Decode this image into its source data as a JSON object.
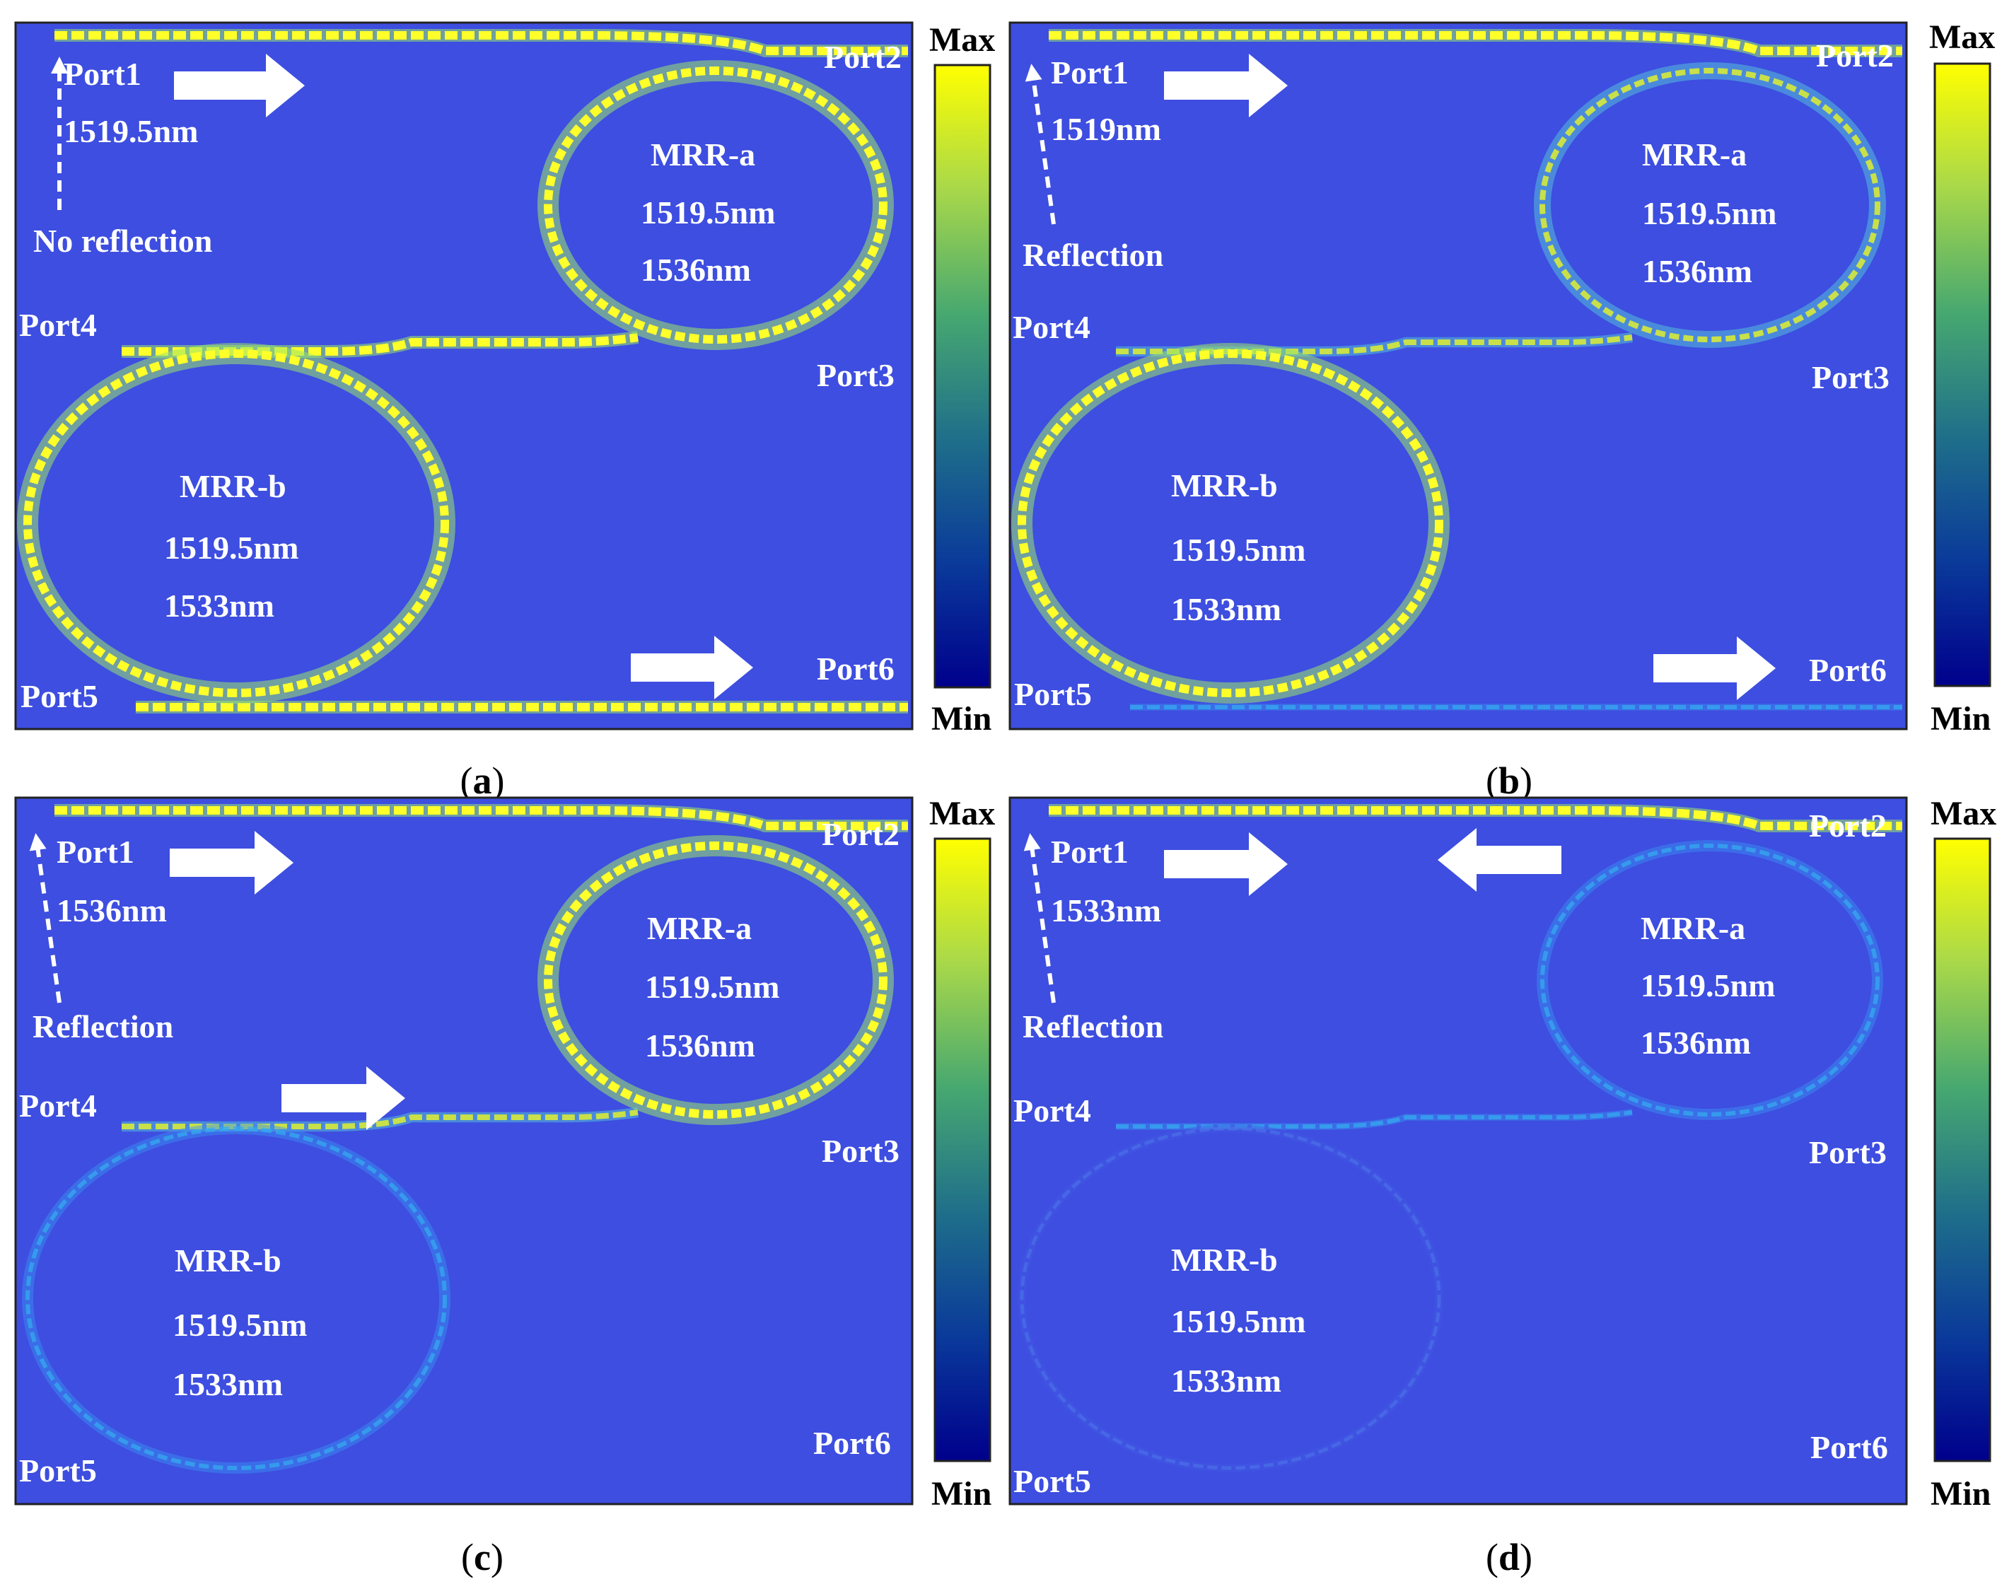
{
  "colorbar": {
    "max_label": "Max",
    "min_label": "Min",
    "colors": [
      "#00008c",
      "#0a3a9a",
      "#1f6f8a",
      "#47a870",
      "#a8d84a",
      "#ffff00"
    ]
  },
  "colors": {
    "background": "#3d4ee0",
    "ring_strong": "#ffff2a",
    "ring_weak": "#35a8f0",
    "arrow": "#ffffff"
  },
  "panels": [
    {
      "caption": "a",
      "port1": "Port1",
      "port2": "Port2",
      "port3": "Port3",
      "port4": "Port4",
      "port5": "Port5",
      "port6": "Port6",
      "port1_wavelength": "1519.5nm",
      "reflection_note": "No reflection",
      "mrr_a": {
        "name": "MRR-a",
        "wl1": "1519.5nm",
        "wl2": "1536nm"
      },
      "mrr_b": {
        "name": "MRR-b",
        "wl1": "1519.5nm",
        "wl2": "1533nm"
      },
      "ring_a_intensity": "strong",
      "ring_b_intensity": "strong",
      "bus_top": "strong",
      "bus_mid": "strong",
      "bus_bottom": "strong"
    },
    {
      "caption": "b",
      "port1": "Port1",
      "port2": "Port2",
      "port3": "Port3",
      "port4": "Port4",
      "port5": "Port5",
      "port6": "Port6",
      "port1_wavelength": "1519nm",
      "reflection_note": "Reflection",
      "mrr_a": {
        "name": "MRR-a",
        "wl1": "1519.5nm",
        "wl2": "1536nm"
      },
      "mrr_b": {
        "name": "MRR-b",
        "wl1": "1519.5nm",
        "wl2": "1533nm"
      },
      "ring_a_intensity": "medium",
      "ring_b_intensity": "strong",
      "bus_top": "strong",
      "bus_mid": "medium",
      "bus_bottom": "weak"
    },
    {
      "caption": "c",
      "port1": "Port1",
      "port2": "Port2",
      "port3": "Port3",
      "port4": "Port4",
      "port5": "Port5",
      "port6": "Port6",
      "port1_wavelength": "1536nm",
      "reflection_note": "Reflection",
      "mrr_a": {
        "name": "MRR-a",
        "wl1": "1519.5nm",
        "wl2": "1536nm"
      },
      "mrr_b": {
        "name": "MRR-b",
        "wl1": "1519.5nm",
        "wl2": "1533nm"
      },
      "ring_a_intensity": "strong",
      "ring_b_intensity": "weak",
      "bus_top": "strong",
      "bus_mid": "medium",
      "bus_bottom": "none"
    },
    {
      "caption": "d",
      "port1": "Port1",
      "port2": "Port2",
      "port3": "Port3",
      "port4": "Port4",
      "port5": "Port5",
      "port6": "Port6",
      "port1_wavelength": "1533nm",
      "reflection_note": "Reflection",
      "mrr_a": {
        "name": "MRR-a",
        "wl1": "1519.5nm",
        "wl2": "1536nm"
      },
      "mrr_b": {
        "name": "MRR-b",
        "wl1": "1519.5nm",
        "wl2": "1533nm"
      },
      "ring_a_intensity": "weak",
      "ring_b_intensity": "faint",
      "bus_top": "strong",
      "bus_mid": "weak",
      "bus_bottom": "none"
    }
  ]
}
